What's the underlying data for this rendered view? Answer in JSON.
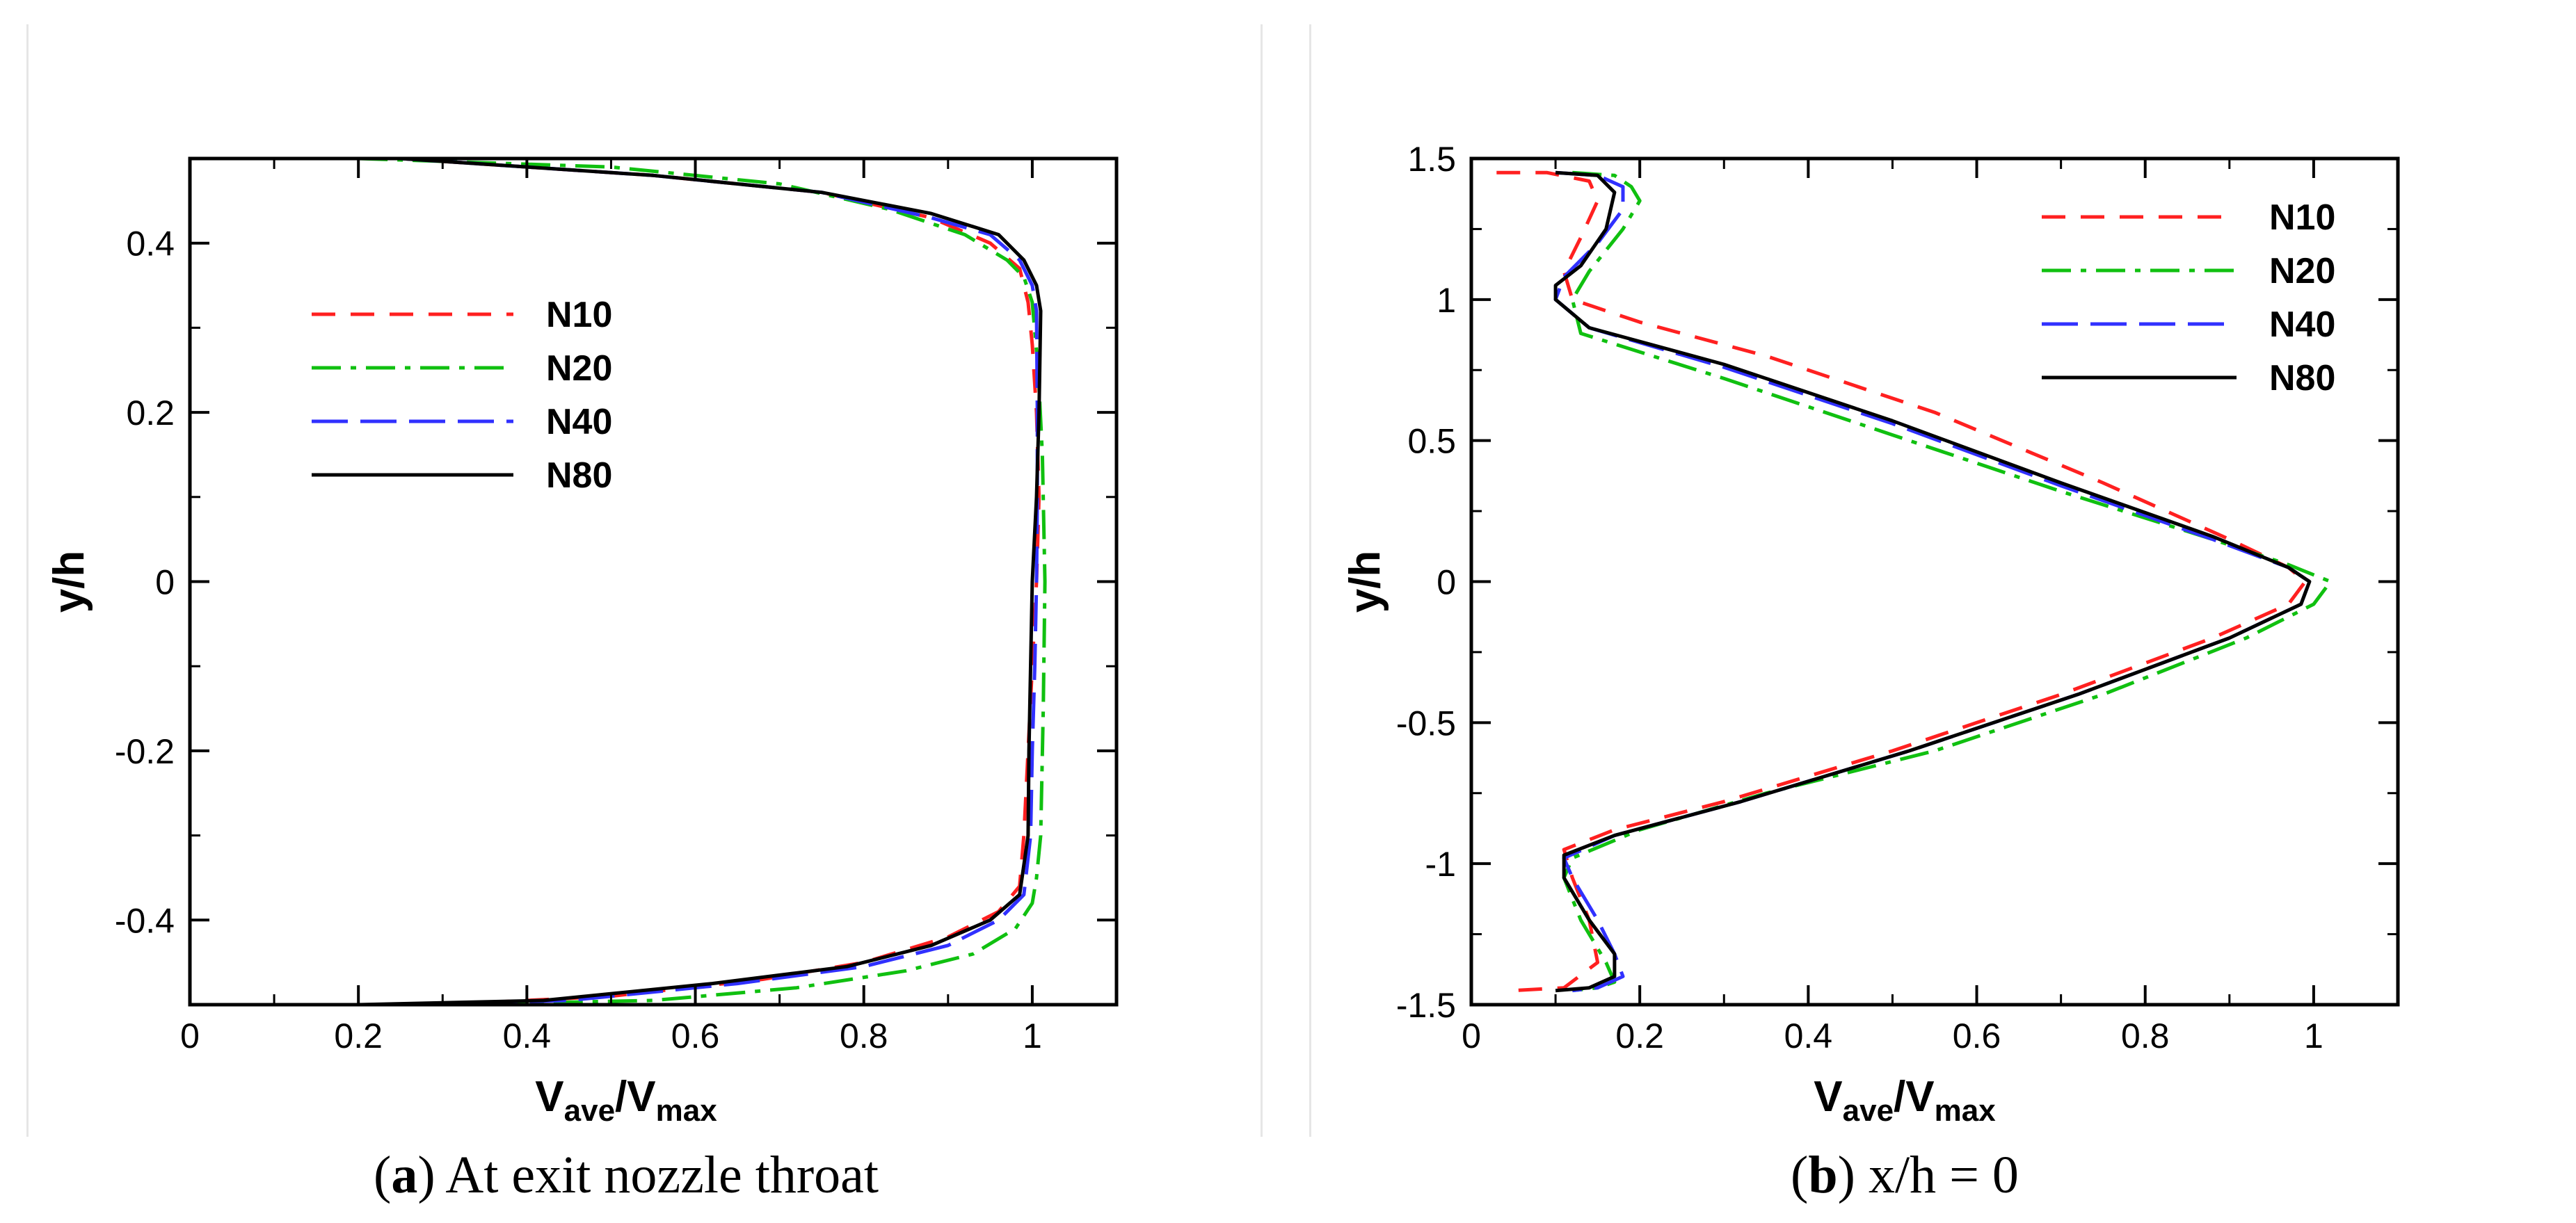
{
  "chart_data": [
    {
      "type": "line",
      "id": "a",
      "caption_letter": "a",
      "caption_text": ") At exit nozzle throat",
      "caption_open": "(",
      "xlabel_main": "V",
      "xlabel_sub": "ave",
      "xlabel_main2": "/V",
      "xlabel_sub2": "max",
      "ylabel": "y/h",
      "xlim": [
        0,
        1.1
      ],
      "ylim": [
        -0.5,
        0.5
      ],
      "xticks": [
        0,
        0.2,
        0.4,
        0.6,
        0.8,
        1
      ],
      "xtick_labels": [
        "0",
        "0.2",
        "0.4",
        "0.6",
        "0.8",
        "1"
      ],
      "yticks": [
        -0.4,
        -0.2,
        0,
        0.2,
        0.4
      ],
      "ytick_labels": [
        "-0.4",
        "-0.2",
        "0",
        "0.2",
        "0.4"
      ],
      "legend_position": "upper-left",
      "series": [
        {
          "name": "N10",
          "color": "#ff2020",
          "style": "dashed",
          "x": [
            0.25,
            0.55,
            0.75,
            0.88,
            0.95,
            0.985,
            0.995,
            1.0,
            1.005,
            1.008,
            1.005,
            1.0,
            0.995,
            0.99,
            0.985,
            0.96,
            0.9,
            0.8,
            0.68,
            0.5,
            0.3
          ],
          "y": [
            0.5,
            0.48,
            0.46,
            0.43,
            0.4,
            0.37,
            0.33,
            0.28,
            0.2,
            0.1,
            0.0,
            -0.1,
            -0.2,
            -0.3,
            -0.36,
            -0.39,
            -0.42,
            -0.45,
            -0.47,
            -0.49,
            -0.5
          ]
        },
        {
          "name": "N20",
          "color": "#10c010",
          "style": "dashdot",
          "x": [
            0.2,
            0.5,
            0.7,
            0.83,
            0.92,
            0.97,
            0.99,
            1.0,
            1.007,
            1.012,
            1.015,
            1.013,
            1.01,
            1.005,
            1.0,
            0.98,
            0.93,
            0.85,
            0.72,
            0.55,
            0.3
          ],
          "y": [
            0.5,
            0.49,
            0.47,
            0.44,
            0.41,
            0.38,
            0.36,
            0.33,
            0.25,
            0.15,
            0.0,
            -0.15,
            -0.3,
            -0.35,
            -0.38,
            -0.41,
            -0.44,
            -0.46,
            -0.48,
            -0.495,
            -0.5
          ]
        },
        {
          "name": "N40",
          "color": "#3030ff",
          "style": "longdash",
          "x": [
            0.25,
            0.55,
            0.75,
            0.88,
            0.95,
            0.985,
            1.0,
            1.005,
            1.006,
            1.006,
            1.005,
            1.003,
            1.0,
            0.998,
            0.99,
            0.96,
            0.9,
            0.8,
            0.65,
            0.45,
            0.25
          ],
          "y": [
            0.5,
            0.48,
            0.46,
            0.43,
            0.41,
            0.38,
            0.35,
            0.32,
            0.2,
            0.1,
            0.0,
            -0.1,
            -0.2,
            -0.3,
            -0.37,
            -0.4,
            -0.43,
            -0.455,
            -0.475,
            -0.495,
            -0.5
          ]
        },
        {
          "name": "N80",
          "color": "#000000",
          "style": "solid",
          "x": [
            0.25,
            0.55,
            0.75,
            0.88,
            0.96,
            0.99,
            1.005,
            1.01,
            1.008,
            1.005,
            1.0,
            0.998,
            0.996,
            0.995,
            0.985,
            0.95,
            0.88,
            0.78,
            0.62,
            0.42,
            0.2
          ],
          "y": [
            0.5,
            0.48,
            0.46,
            0.435,
            0.41,
            0.38,
            0.35,
            0.32,
            0.2,
            0.1,
            0.0,
            -0.1,
            -0.2,
            -0.3,
            -0.37,
            -0.4,
            -0.43,
            -0.455,
            -0.475,
            -0.495,
            -0.5
          ]
        }
      ]
    },
    {
      "type": "line",
      "id": "b",
      "caption_letter": "b",
      "caption_text": ") x/h = 0",
      "caption_open": "(",
      "xlabel_main": "V",
      "xlabel_sub": "ave",
      "xlabel_main2": "/V",
      "xlabel_sub2": "max",
      "ylabel": "y/h",
      "xlim": [
        0,
        1.1
      ],
      "ylim": [
        -1.5,
        1.5
      ],
      "xticks": [
        0,
        0.2,
        0.4,
        0.6,
        0.8,
        1
      ],
      "xtick_labels": [
        "0",
        "0.2",
        "0.4",
        "0.6",
        "0.8",
        "1"
      ],
      "yticks": [
        -1.5,
        -1,
        -0.5,
        0,
        0.5,
        1,
        1.5
      ],
      "ytick_labels": [
        "-1.5",
        "-1",
        "-0.5",
        "0",
        "0.5",
        "1",
        "1.5"
      ],
      "legend_position": "upper-right",
      "series": [
        {
          "name": "N10",
          "color": "#ff2020",
          "style": "dashed",
          "x": [
            0.03,
            0.09,
            0.14,
            0.15,
            0.13,
            0.11,
            0.12,
            0.2,
            0.35,
            0.55,
            0.75,
            0.9,
            0.97,
            0.99,
            0.97,
            0.88,
            0.7,
            0.5,
            0.3,
            0.17,
            0.11,
            0.12,
            0.14,
            0.15,
            0.11,
            0.05
          ],
          "y": [
            1.45,
            1.45,
            1.42,
            1.35,
            1.22,
            1.1,
            1.0,
            0.92,
            0.8,
            0.6,
            0.35,
            0.15,
            0.05,
            0.0,
            -0.08,
            -0.2,
            -0.4,
            -0.6,
            -0.78,
            -0.88,
            -0.95,
            -1.05,
            -1.2,
            -1.35,
            -1.44,
            -1.45
          ]
        },
        {
          "name": "N20",
          "color": "#10c010",
          "style": "dashdot",
          "x": [
            0.12,
            0.17,
            0.19,
            0.2,
            0.18,
            0.14,
            0.12,
            0.13,
            0.3,
            0.5,
            0.7,
            0.88,
            0.97,
            1.02,
            1.0,
            0.92,
            0.75,
            0.55,
            0.35,
            0.2,
            0.12,
            0.11,
            0.13,
            0.16,
            0.17,
            0.15,
            0.12
          ],
          "y": [
            1.45,
            1.44,
            1.4,
            1.35,
            1.25,
            1.1,
            1.0,
            0.88,
            0.72,
            0.52,
            0.32,
            0.15,
            0.06,
            0.0,
            -0.08,
            -0.2,
            -0.4,
            -0.6,
            -0.75,
            -0.88,
            -0.98,
            -1.05,
            -1.2,
            -1.35,
            -1.42,
            -1.44,
            -1.45
          ]
        },
        {
          "name": "N40",
          "color": "#3030ff",
          "style": "longdash",
          "x": [
            0.1,
            0.15,
            0.18,
            0.18,
            0.15,
            0.11,
            0.1,
            0.14,
            0.3,
            0.5,
            0.7,
            0.88,
            0.97,
            0.995,
            0.985,
            0.9,
            0.72,
            0.52,
            0.32,
            0.17,
            0.11,
            0.12,
            0.15,
            0.17,
            0.18,
            0.15,
            0.12
          ],
          "y": [
            1.45,
            1.44,
            1.4,
            1.32,
            1.2,
            1.08,
            1.0,
            0.9,
            0.76,
            0.56,
            0.34,
            0.15,
            0.05,
            0.0,
            -0.08,
            -0.2,
            -0.4,
            -0.6,
            -0.78,
            -0.9,
            -0.98,
            -1.05,
            -1.2,
            -1.32,
            -1.4,
            -1.44,
            -1.45
          ]
        },
        {
          "name": "N80",
          "color": "#000000",
          "style": "solid",
          "x": [
            0.1,
            0.15,
            0.17,
            0.16,
            0.13,
            0.1,
            0.1,
            0.14,
            0.3,
            0.5,
            0.7,
            0.88,
            0.97,
            0.995,
            0.985,
            0.9,
            0.72,
            0.52,
            0.32,
            0.17,
            0.11,
            0.11,
            0.14,
            0.17,
            0.17,
            0.14,
            0.1
          ],
          "y": [
            1.45,
            1.44,
            1.38,
            1.25,
            1.12,
            1.05,
            1.0,
            0.9,
            0.77,
            0.57,
            0.35,
            0.16,
            0.05,
            0.0,
            -0.08,
            -0.2,
            -0.4,
            -0.6,
            -0.78,
            -0.9,
            -0.97,
            -1.05,
            -1.2,
            -1.32,
            -1.4,
            -1.44,
            -1.45
          ]
        }
      ]
    }
  ]
}
